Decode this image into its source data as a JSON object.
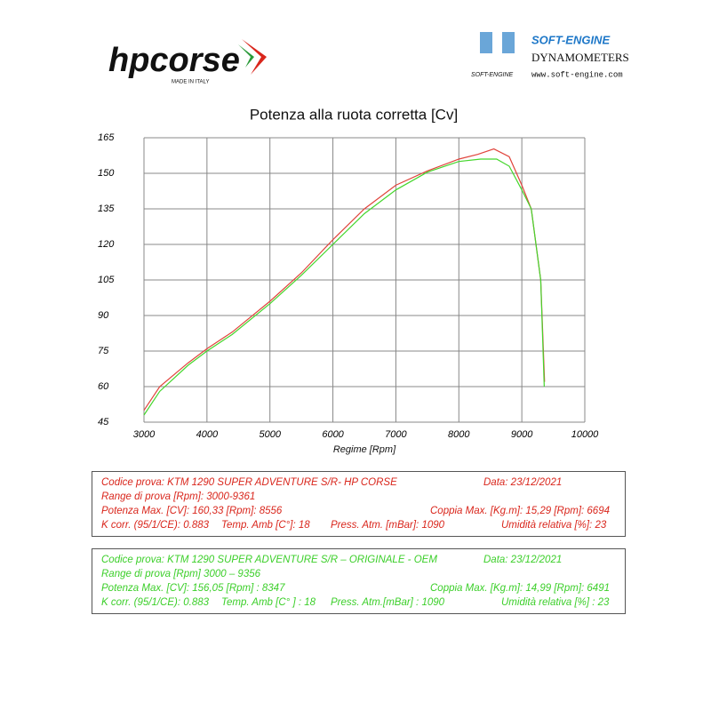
{
  "logos": {
    "brand": "hpcorse",
    "brand_tagline": "MADE IN ITALY",
    "dyno": "SOFT-ENGINE",
    "dyno_sub": "DYNAMOMETERS",
    "dyno_site": "www.soft-engine.com",
    "dyno_small": "SOFT-ENGINE"
  },
  "chart_data": {
    "type": "line",
    "title": "Potenza alla ruota corretta [Cv]",
    "x_label": "Regime [Rpm]",
    "xlim": [
      3000,
      10000
    ],
    "xticks": [
      3000,
      4000,
      5000,
      6000,
      7000,
      8000,
      9000,
      10000
    ],
    "ylim": [
      45,
      165
    ],
    "yticks": [
      45,
      60,
      75,
      90,
      105,
      120,
      135,
      150,
      165
    ],
    "grid": true,
    "series": [
      {
        "color": "#e0443c",
        "x": [
          3000,
          3250,
          3700,
          4000,
          4400,
          5000,
          5500,
          6000,
          6500,
          7000,
          7500,
          8000,
          8300,
          8556,
          8800,
          9000,
          9150,
          9300,
          9361
        ],
        "values": [
          50,
          60,
          70,
          76,
          83,
          96,
          108,
          122,
          135,
          145,
          151,
          156,
          158,
          160.3,
          157,
          145,
          135,
          105,
          62
        ]
      },
      {
        "color": "#44d62c",
        "x": [
          3000,
          3250,
          3700,
          4000,
          4400,
          5000,
          5500,
          6000,
          6500,
          7000,
          7500,
          8000,
          8347,
          8600,
          8800,
          9000,
          9150,
          9300,
          9356
        ],
        "values": [
          48,
          58,
          69,
          75,
          82,
          95,
          107,
          120,
          133,
          143,
          150.5,
          155,
          156,
          156,
          153,
          143,
          135,
          105,
          60
        ]
      }
    ]
  },
  "info_boxes": [
    {
      "color": "#d9261c",
      "rows": [
        [
          "Codice prova: KTM 1290 SUPER ADVENTURE S/R- HP CORSE",
          "Data: 23/12/2021"
        ],
        [
          "Range di prova [Rpm]: 3000-9361"
        ],
        [
          "Potenza Max. [CV]:  160,33 [Rpm]: 8556",
          "Coppia Max. [Kg.m]:  15,29  [Rpm]: 6694"
        ],
        [
          "K corr. (95/1/CE): 0.883",
          "Temp. Amb [C°]: 18",
          "Press. Atm. [mBar]: 1090",
          "Umidità relativa [%]: 23"
        ]
      ]
    },
    {
      "color": "#3ccf2a",
      "rows": [
        [
          "Codice prova: KTM 1290 SUPER ADVENTURE S/R – ORIGINALE - OEM",
          "Data: 23/12/2021"
        ],
        [
          "Range di prova [Rpm] 3000 – 9356"
        ],
        [
          "Potenza Max. [CV]:  156,05 [Rpm] : 8347",
          "Coppia Max. [Kg.m]:  14,99  [Rpm]: 6491"
        ],
        [
          "K corr. (95/1/CE): 0.883",
          "Temp. Amb [C° ] : 18",
          "Press. Atm.[mBar] : 1090",
          "Umidità relativa [%] : 23"
        ]
      ]
    }
  ]
}
